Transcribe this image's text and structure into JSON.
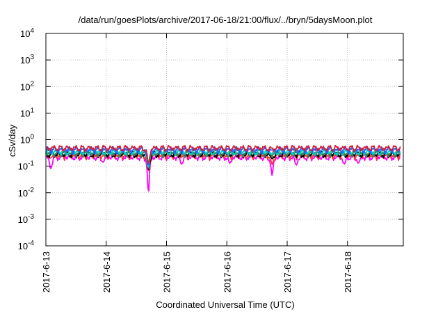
{
  "chart_data": {
    "type": "line",
    "title": "/data/run/goesPlots/archive/2017-06-18/21:00/flux/../bryn/5daysMoon.plot",
    "xlabel": "Coordinated Universal Time (UTC)",
    "ylabel": "cSv/day",
    "yscale": "log",
    "grid": true,
    "legend": "none",
    "x_ticks": [
      "2017-6-13",
      "2017-6-14",
      "2017-6-15",
      "2017-6-16",
      "2017-6-17",
      "2017-6-18"
    ],
    "xlim": [
      "2017-6-13",
      "2017-6-18 21:00"
    ],
    "ylim": [
      0.0001,
      10000
    ],
    "y_ticks": [
      {
        "base": "10",
        "exp": "-4",
        "value": 0.0001
      },
      {
        "base": "10",
        "exp": "-3",
        "value": 0.001
      },
      {
        "base": "10",
        "exp": "-2",
        "value": 0.01
      },
      {
        "base": "10",
        "exp": "-1",
        "value": 0.1
      },
      {
        "base": "10",
        "exp": "0",
        "value": 1
      },
      {
        "base": "10",
        "exp": "1",
        "value": 10
      },
      {
        "base": "10",
        "exp": "2",
        "value": 100
      },
      {
        "base": "10",
        "exp": "3",
        "value": 1000
      },
      {
        "base": "10",
        "exp": "4",
        "value": 10000
      }
    ],
    "series": [
      {
        "color": "#ff00ff",
        "base": 0.22
      },
      {
        "color": "#ff3040",
        "base": 0.25
      },
      {
        "color": "#000000",
        "base": 0.28
      },
      {
        "color": "#2e8b57",
        "base": 0.31
      },
      {
        "color": "#00d0d0",
        "base": 0.35
      },
      {
        "color": "#1e64ff",
        "base": 0.42
      },
      {
        "color": "#d02040",
        "base": 0.48
      }
    ],
    "dips": [
      {
        "day": 0.08,
        "value": 0.08
      },
      {
        "day": 0.95,
        "value": 0.14
      },
      {
        "day": 1.7,
        "value": 0.0035
      },
      {
        "day": 2.25,
        "value": 0.12
      },
      {
        "day": 3.05,
        "value": 0.13
      },
      {
        "day": 3.75,
        "value": 0.045
      },
      {
        "day": 4.15,
        "value": 0.11
      },
      {
        "day": 4.95,
        "value": 0.12
      },
      {
        "day": 5.18,
        "value": 0.13
      }
    ]
  }
}
